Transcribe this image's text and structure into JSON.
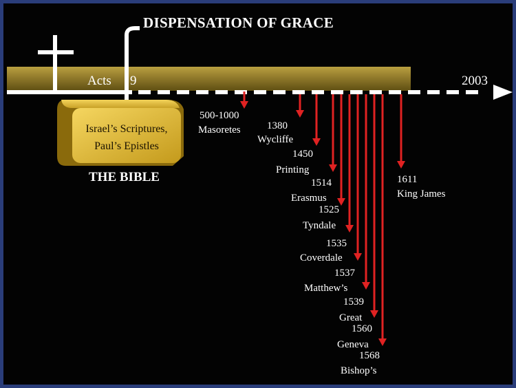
{
  "title": "DISPENSATION OF GRACE",
  "book": {
    "line1": "Israel’s Scriptures,",
    "line2": "Paul’s Epistles",
    "caption": "THE BIBLE"
  },
  "axis": {
    "start_label": "Acts",
    "start_num": "9",
    "end_label": "2003"
  },
  "colors": {
    "bar": "#8a7420",
    "arrow": "#e02222",
    "background": "#030303",
    "frame": "#2a3d7a"
  },
  "events": [
    {
      "date": "500-1000",
      "name": "Masoretes"
    },
    {
      "date": "1380",
      "name": "Wycliffe"
    },
    {
      "date": "1450",
      "name": "Printing"
    },
    {
      "date": "1514",
      "name": "Erasmus"
    },
    {
      "date": "1525",
      "name": "Tyndale"
    },
    {
      "date": "1535",
      "name": "Coverdale"
    },
    {
      "date": "1537",
      "name": "Matthew’s"
    },
    {
      "date": "1539",
      "name": "Great"
    },
    {
      "date": "1560",
      "name": "Geneva"
    },
    {
      "date": "1568",
      "name": "Bishop’s"
    },
    {
      "date": "1611",
      "name": "King James"
    }
  ]
}
